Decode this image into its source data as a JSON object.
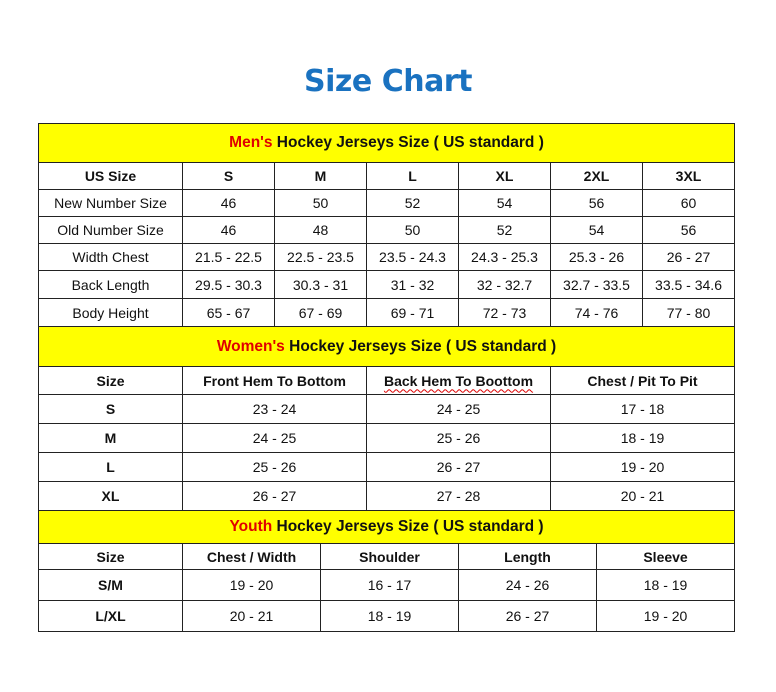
{
  "title": "Size Chart",
  "colors": {
    "title": "#1a72c0",
    "section_bg": "#ffff00",
    "accent_red": "#e00000"
  },
  "mens": {
    "heading_accent": "Men's",
    "heading_rest": " Hockey Jerseys Size ( US standard )",
    "header": [
      "US Size",
      "S",
      "M",
      "L",
      "XL",
      "2XL",
      "3XL"
    ],
    "rows": [
      [
        "New Number Size",
        "46",
        "50",
        "52",
        "54",
        "56",
        "60"
      ],
      [
        "Old Number Size",
        "46",
        "48",
        "50",
        "52",
        "54",
        "56"
      ],
      [
        "Width Chest",
        "21.5 - 22.5",
        "22.5 - 23.5",
        "23.5 - 24.3",
        "24.3 - 25.3",
        "25.3 - 26",
        "26 - 27"
      ],
      [
        "Back Length",
        "29.5 - 30.3",
        "30.3 - 31",
        "31 - 32",
        "32 - 32.7",
        "32.7 - 33.5",
        "33.5 - 34.6"
      ],
      [
        "Body Height",
        "65 - 67",
        "67 - 69",
        "69 - 71",
        "72 - 73",
        "74 - 76",
        "77 - 80"
      ]
    ]
  },
  "womens": {
    "heading_accent": "Women's",
    "heading_rest": " Hockey Jerseys Size ( US standard )",
    "header": [
      "Size",
      "Front Hem To Bottom",
      "Back Hem To Boottom",
      "Chest / Pit To Pit"
    ],
    "rows": [
      [
        "S",
        "23 - 24",
        "24 - 25",
        "17 - 18"
      ],
      [
        "M",
        "24 - 25",
        "25 - 26",
        "18 - 19"
      ],
      [
        "L",
        "25 - 26",
        "26 - 27",
        "19 - 20"
      ],
      [
        "XL",
        "26 - 27",
        "27 - 28",
        "20 - 21"
      ]
    ]
  },
  "youth": {
    "heading_accent": "Youth",
    "heading_rest": " Hockey Jerseys Size ( US standard )",
    "header": [
      "Size",
      "Chest / Width",
      "Shoulder",
      "Length",
      "Sleeve"
    ],
    "rows": [
      [
        "S/M",
        "19 - 20",
        "16 - 17",
        "24 - 26",
        "18 - 19"
      ],
      [
        "L/XL",
        "20 - 21",
        "18 - 19",
        "26 - 27",
        "19 - 20"
      ]
    ]
  }
}
